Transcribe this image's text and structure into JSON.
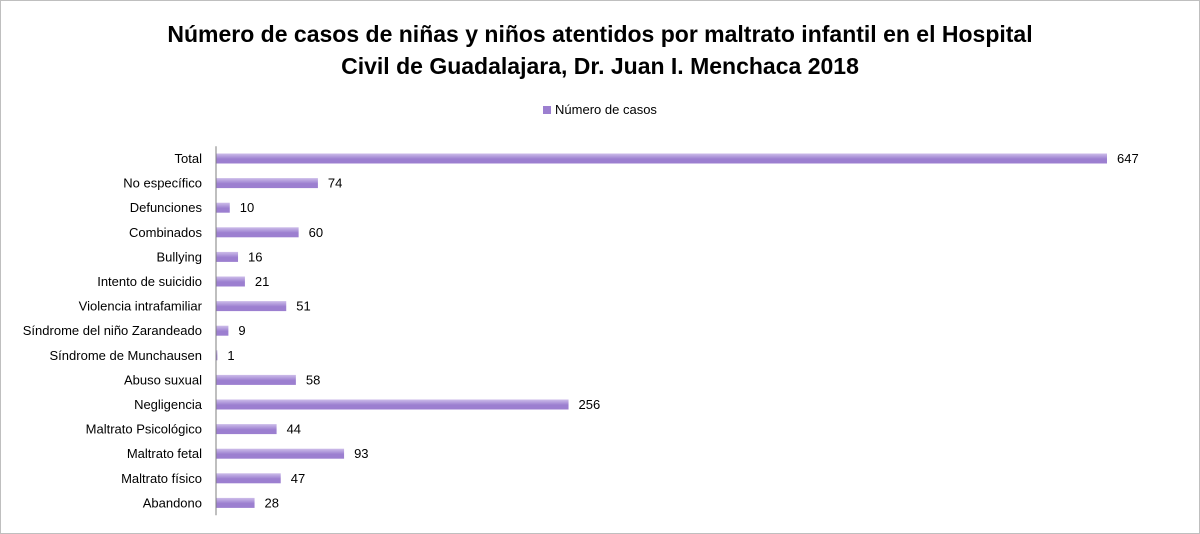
{
  "chart_data": {
    "type": "bar",
    "orientation": "horizontal",
    "title_lines": [
      "Número de casos de niñas y niños atentidos por maltrato infantil en el Hospital",
      "Civil de Guadalajara, Dr. Juan I. Menchaca 2018"
    ],
    "legend": [
      "Número de casos"
    ],
    "legend_position": "top",
    "categories": [
      "Total",
      "No específico",
      "Defunciones",
      "Combinados",
      "Bullying",
      "Intento de suicidio",
      "Violencia intrafamiliar",
      "Síndrome del niño Zarandeado",
      "Síndrome de Munchausen",
      "Abuso suxual",
      "Negligencia",
      "Maltrato Psicológico",
      "Maltrato fetal",
      "Maltrato físico",
      "Abandono"
    ],
    "series": [
      {
        "name": "Número de casos",
        "values": [
          647,
          74,
          10,
          60,
          16,
          21,
          51,
          9,
          1,
          58,
          256,
          44,
          93,
          47,
          28
        ]
      }
    ],
    "xlim": [
      0,
      647
    ],
    "grid": false,
    "colors": {
      "bar": "#9c7fd0",
      "bar_light": "#cdbdea",
      "axis": "#7f7f7f"
    }
  }
}
